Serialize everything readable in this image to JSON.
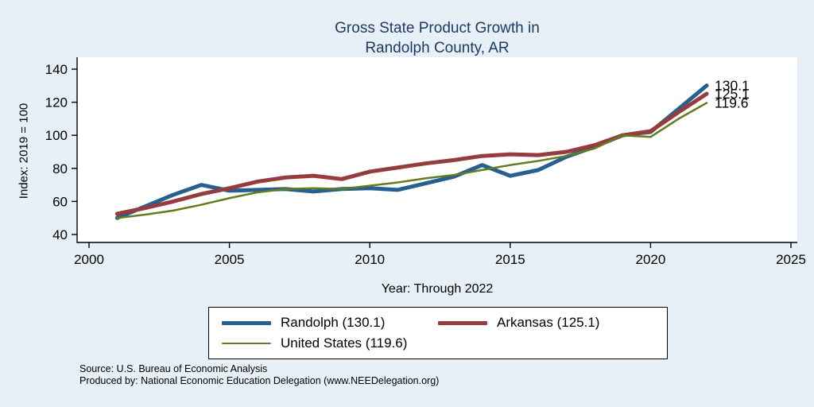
{
  "title": {
    "line1": "Gross State Product Growth in",
    "line2": "Randolph County, AR"
  },
  "axes": {
    "y_title": "Index: 2019 = 100",
    "x_title": "Year: Through 2022",
    "x_ticks": [
      2000,
      2005,
      2010,
      2015,
      2020,
      2025
    ],
    "y_ticks": [
      40,
      60,
      80,
      100,
      120,
      140
    ]
  },
  "legend": {
    "items": [
      {
        "label": "Randolph  (130.1)"
      },
      {
        "label": "Arkansas (125.1)"
      },
      {
        "label": "United States (119.6)"
      }
    ]
  },
  "end_labels": [
    "130.1",
    "125.1",
    "119.6"
  ],
  "source": {
    "line1": "Source: U.S. Bureau of Economic Analysis",
    "line2": "Produced by: National Economic Education Delegation (www.NEEDelegation.org)"
  },
  "colors": {
    "background": "#e7f0f6",
    "plot_background": "#ffffff",
    "title": "#1f3864",
    "axis": "#000000"
  },
  "chart_data": {
    "type": "line",
    "title": "Gross State Product Growth in Randolph County, AR",
    "xlabel": "Year: Through 2022",
    "ylabel": "Index: 2019 = 100",
    "xlim": [
      2000,
      2025
    ],
    "ylim": [
      40,
      140
    ],
    "grid": false,
    "legend_position": "bottom",
    "x": [
      2001,
      2002,
      2003,
      2004,
      2005,
      2006,
      2007,
      2008,
      2009,
      2010,
      2011,
      2012,
      2013,
      2014,
      2015,
      2016,
      2017,
      2018,
      2019,
      2020,
      2021,
      2022
    ],
    "series": [
      {
        "name": "Randolph",
        "color": "#26608f",
        "width": 5,
        "final": 130.1,
        "values": [
          50,
          57,
          64,
          70,
          66.5,
          67,
          67.5,
          66,
          67.5,
          68,
          67,
          71,
          75,
          82,
          75.5,
          79,
          87,
          93,
          100,
          102,
          116,
          130.1
        ]
      },
      {
        "name": "Arkansas",
        "color": "#963c3e",
        "width": 5,
        "final": 125.1,
        "values": [
          52.5,
          56,
          60,
          64.5,
          68,
          72,
          74.5,
          75.5,
          73.5,
          78,
          80.5,
          83,
          85,
          87.5,
          88.5,
          88,
          90,
          94,
          100,
          102.5,
          114,
          125.1
        ]
      },
      {
        "name": "United States",
        "color": "#647c1f",
        "width": 2.5,
        "final": 119.6,
        "values": [
          50,
          52,
          54.5,
          58,
          62,
          65.5,
          67.5,
          68,
          67.5,
          69.5,
          71.5,
          74,
          76,
          79,
          82,
          84.5,
          87.5,
          92,
          100,
          99,
          110,
          119.6
        ]
      }
    ]
  }
}
